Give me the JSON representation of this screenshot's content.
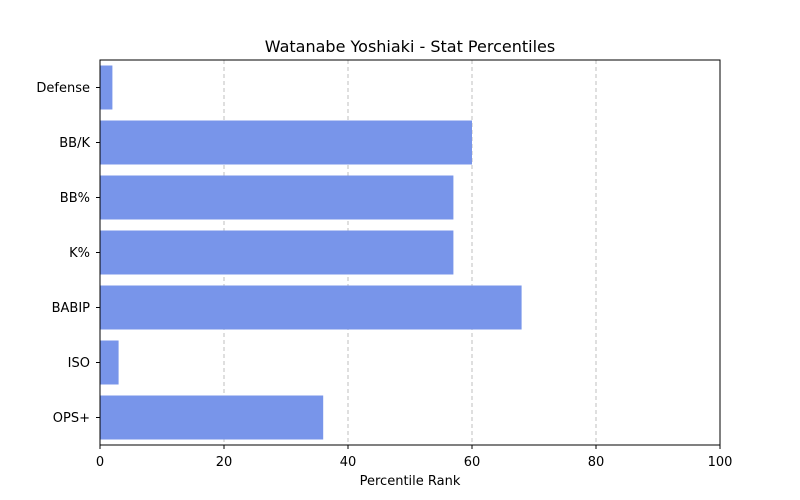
{
  "chart_data": {
    "type": "bar",
    "orientation": "horizontal",
    "title": "Watanabe Yoshiaki - Stat Percentiles",
    "xlabel": "Percentile Rank",
    "ylabel": "",
    "xlim": [
      0,
      100
    ],
    "xticks": [
      0,
      20,
      40,
      60,
      80,
      100
    ],
    "grid": "x-dashed",
    "categories": [
      "Defense",
      "BB/K",
      "BB%",
      "K%",
      "BABIP",
      "ISO",
      "OPS+"
    ],
    "values": [
      2,
      60,
      57,
      57,
      68,
      3,
      36
    ],
    "bar_color": "#7895ea"
  }
}
